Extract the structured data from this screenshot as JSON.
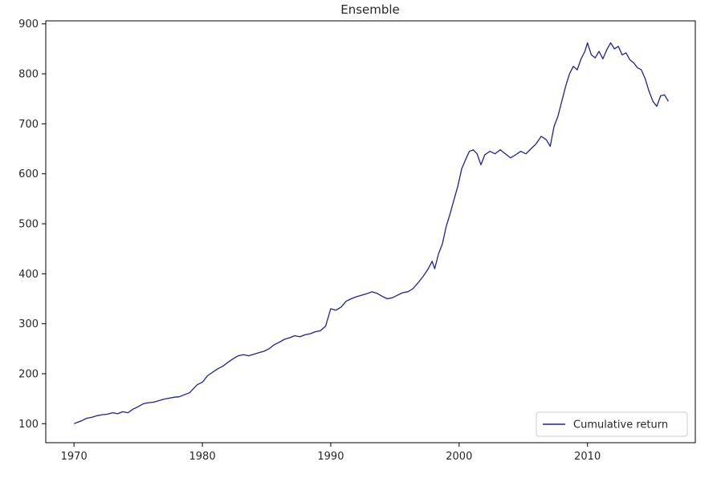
{
  "chart_data": {
    "type": "line",
    "title": "Ensemble",
    "xlabel": "",
    "ylabel": "",
    "xlim": [
      1967.8,
      2018.4
    ],
    "ylim": [
      62,
      906
    ],
    "x_ticks": [
      1970,
      1980,
      1990,
      2000,
      2010
    ],
    "y_ticks": [
      100,
      200,
      300,
      400,
      500,
      600,
      700,
      800,
      900
    ],
    "grid": false,
    "legend": {
      "position": "bottom-right"
    },
    "series": [
      {
        "name": "Cumulative return",
        "color": "#1f1f9a",
        "points": [
          [
            1970.0,
            100
          ],
          [
            1970.3,
            103
          ],
          [
            1970.6,
            106
          ],
          [
            1971.0,
            111
          ],
          [
            1971.4,
            113
          ],
          [
            1971.8,
            116
          ],
          [
            1972.2,
            118
          ],
          [
            1972.6,
            119
          ],
          [
            1973.0,
            122
          ],
          [
            1973.4,
            120
          ],
          [
            1973.8,
            124
          ],
          [
            1974.2,
            122
          ],
          [
            1974.6,
            129
          ],
          [
            1975.0,
            134
          ],
          [
            1975.4,
            140
          ],
          [
            1975.8,
            142
          ],
          [
            1976.2,
            143
          ],
          [
            1976.6,
            146
          ],
          [
            1977.0,
            149
          ],
          [
            1977.4,
            151
          ],
          [
            1977.8,
            153
          ],
          [
            1978.2,
            154
          ],
          [
            1978.6,
            158
          ],
          [
            1979.0,
            162
          ],
          [
            1979.3,
            170
          ],
          [
            1979.6,
            178
          ],
          [
            1980.0,
            183
          ],
          [
            1980.4,
            196
          ],
          [
            1980.8,
            203
          ],
          [
            1981.2,
            210
          ],
          [
            1981.6,
            215
          ],
          [
            1982.0,
            223
          ],
          [
            1982.4,
            230
          ],
          [
            1982.8,
            236
          ],
          [
            1983.2,
            238
          ],
          [
            1983.6,
            236
          ],
          [
            1984.0,
            239
          ],
          [
            1984.4,
            242
          ],
          [
            1984.8,
            245
          ],
          [
            1985.2,
            250
          ],
          [
            1985.6,
            258
          ],
          [
            1986.0,
            263
          ],
          [
            1986.4,
            269
          ],
          [
            1986.8,
            272
          ],
          [
            1987.2,
            276
          ],
          [
            1987.6,
            274
          ],
          [
            1988.0,
            278
          ],
          [
            1988.4,
            280
          ],
          [
            1988.8,
            284
          ],
          [
            1989.2,
            286
          ],
          [
            1989.6,
            295
          ],
          [
            1990.0,
            330
          ],
          [
            1990.4,
            327
          ],
          [
            1990.8,
            333
          ],
          [
            1991.2,
            345
          ],
          [
            1991.6,
            350
          ],
          [
            1992.0,
            354
          ],
          [
            1992.4,
            357
          ],
          [
            1992.8,
            360
          ],
          [
            1993.2,
            364
          ],
          [
            1993.6,
            361
          ],
          [
            1994.0,
            355
          ],
          [
            1994.4,
            350
          ],
          [
            1994.8,
            352
          ],
          [
            1995.2,
            357
          ],
          [
            1995.6,
            362
          ],
          [
            1996.0,
            364
          ],
          [
            1996.4,
            370
          ],
          [
            1996.8,
            382
          ],
          [
            1997.2,
            395
          ],
          [
            1997.6,
            410
          ],
          [
            1997.9,
            425
          ],
          [
            1998.1,
            410
          ],
          [
            1998.4,
            440
          ],
          [
            1998.7,
            460
          ],
          [
            1999.0,
            495
          ],
          [
            1999.3,
            520
          ],
          [
            1999.6,
            548
          ],
          [
            1999.9,
            575
          ],
          [
            2000.2,
            610
          ],
          [
            2000.5,
            628
          ],
          [
            2000.8,
            645
          ],
          [
            2001.1,
            648
          ],
          [
            2001.4,
            640
          ],
          [
            2001.7,
            618
          ],
          [
            2002.0,
            638
          ],
          [
            2002.4,
            645
          ],
          [
            2002.8,
            640
          ],
          [
            2003.2,
            648
          ],
          [
            2003.6,
            640
          ],
          [
            2004.0,
            632
          ],
          [
            2004.4,
            638
          ],
          [
            2004.8,
            645
          ],
          [
            2005.2,
            640
          ],
          [
            2005.6,
            650
          ],
          [
            2006.0,
            660
          ],
          [
            2006.4,
            675
          ],
          [
            2006.8,
            668
          ],
          [
            2007.1,
            655
          ],
          [
            2007.4,
            695
          ],
          [
            2007.7,
            715
          ],
          [
            2008.0,
            745
          ],
          [
            2008.3,
            775
          ],
          [
            2008.6,
            800
          ],
          [
            2008.9,
            815
          ],
          [
            2009.2,
            808
          ],
          [
            2009.5,
            830
          ],
          [
            2009.8,
            845
          ],
          [
            2010.0,
            862
          ],
          [
            2010.3,
            838
          ],
          [
            2010.6,
            832
          ],
          [
            2010.9,
            845
          ],
          [
            2011.2,
            830
          ],
          [
            2011.5,
            848
          ],
          [
            2011.8,
            862
          ],
          [
            2012.1,
            850
          ],
          [
            2012.4,
            855
          ],
          [
            2012.7,
            838
          ],
          [
            2013.0,
            842
          ],
          [
            2013.3,
            828
          ],
          [
            2013.6,
            822
          ],
          [
            2013.9,
            812
          ],
          [
            2014.2,
            808
          ],
          [
            2014.5,
            790
          ],
          [
            2014.8,
            765
          ],
          [
            2015.1,
            745
          ],
          [
            2015.4,
            735
          ],
          [
            2015.7,
            756
          ],
          [
            2016.0,
            758
          ],
          [
            2016.3,
            745
          ]
        ]
      }
    ]
  }
}
